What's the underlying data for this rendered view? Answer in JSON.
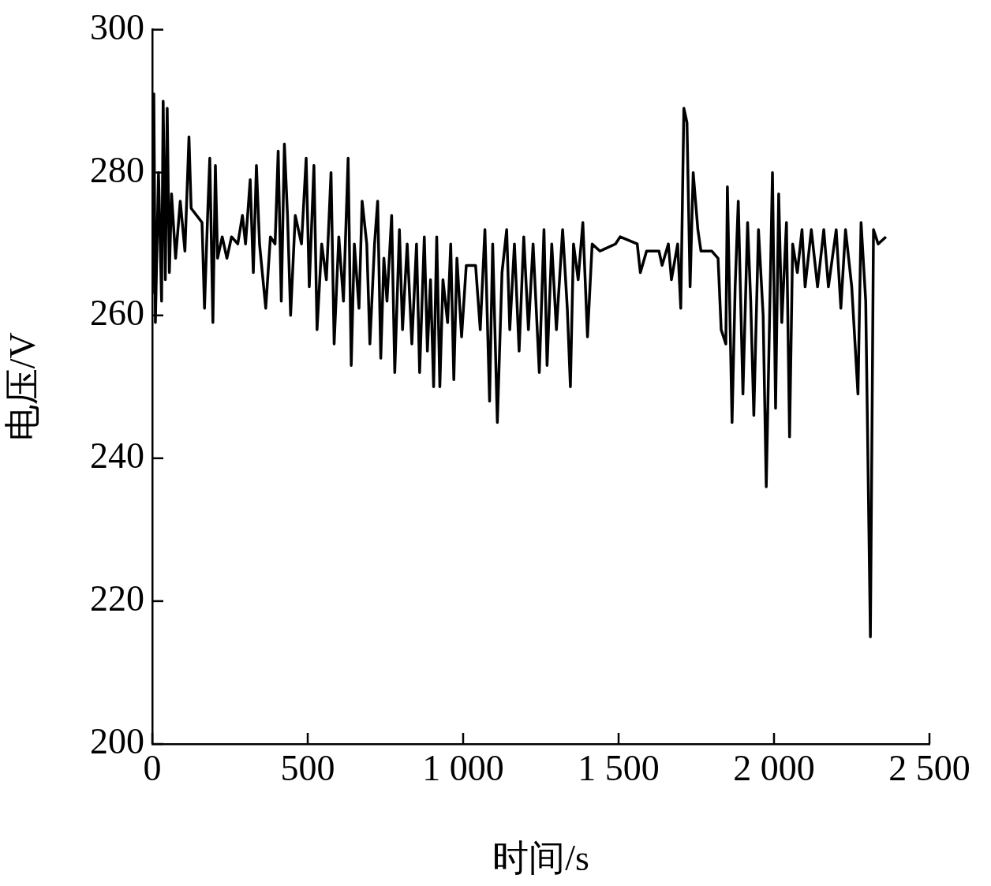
{
  "chart_data": {
    "type": "line",
    "xlabel": "时间/s",
    "ylabel": "电压/V",
    "xlim": [
      0,
      2500
    ],
    "xticks": [
      0,
      500,
      {
        "value": 1000,
        "label": "1 000"
      },
      {
        "value": 1500,
        "label": "1 500"
      },
      {
        "value": 2000,
        "label": "2 000"
      },
      {
        "value": 2500,
        "label": "2 500"
      }
    ],
    "ylim": [
      200,
      300
    ],
    "yticks": [
      200,
      220,
      240,
      260,
      280,
      300
    ],
    "grid": false,
    "legend": false,
    "marker": "none",
    "line_style": "solid",
    "series": [
      {
        "color": "#000000",
        "x": [
          0,
          5,
          10,
          20,
          30,
          35,
          42,
          48,
          55,
          62,
          75,
          90,
          105,
          118,
          125,
          160,
          168,
          178,
          185,
          195,
          203,
          210,
          225,
          240,
          255,
          275,
          290,
          300,
          315,
          325,
          335,
          345,
          365,
          380,
          395,
          405,
          415,
          425,
          435,
          445,
          460,
          480,
          495,
          505,
          520,
          530,
          545,
          560,
          575,
          585,
          600,
          615,
          630,
          640,
          650,
          665,
          675,
          690,
          700,
          715,
          725,
          735,
          745,
          755,
          770,
          780,
          795,
          805,
          820,
          835,
          850,
          860,
          875,
          885,
          895,
          905,
          915,
          925,
          935,
          950,
          960,
          970,
          980,
          995,
          1010,
          1040,
          1055,
          1070,
          1085,
          1095,
          1110,
          1125,
          1140,
          1150,
          1165,
          1180,
          1195,
          1210,
          1225,
          1245,
          1260,
          1270,
          1285,
          1300,
          1320,
          1335,
          1345,
          1355,
          1370,
          1385,
          1400,
          1415,
          1440,
          1490,
          1505,
          1560,
          1570,
          1590,
          1630,
          1640,
          1660,
          1670,
          1690,
          1700,
          1710,
          1720,
          1730,
          1740,
          1755,
          1765,
          1800,
          1820,
          1830,
          1845,
          1850,
          1865,
          1875,
          1885,
          1900,
          1915,
          1925,
          1935,
          1950,
          1965,
          1975,
          1985,
          1995,
          2005,
          2015,
          2025,
          2040,
          2050,
          2060,
          2075,
          2090,
          2100,
          2120,
          2140,
          2160,
          2175,
          2200,
          2215,
          2230,
          2250,
          2270,
          2280,
          2295,
          2310,
          2320,
          2335,
          2360
        ],
        "values": [
          263,
          291,
          259,
          280,
          262,
          290,
          265,
          289,
          266,
          277,
          268,
          276,
          269,
          285,
          275,
          273,
          261,
          274,
          282,
          259,
          281,
          268,
          271,
          268,
          271,
          270,
          274,
          270,
          279,
          266,
          281,
          270,
          261,
          271,
          270,
          283,
          262,
          284,
          274,
          260,
          274,
          270,
          282,
          264,
          281,
          258,
          270,
          265,
          280,
          256,
          271,
          262,
          282,
          253,
          270,
          261,
          276,
          270,
          256,
          270,
          276,
          254,
          268,
          262,
          274,
          252,
          272,
          258,
          270,
          256,
          270,
          252,
          271,
          255,
          265,
          250,
          271,
          250,
          265,
          259,
          270,
          251,
          268,
          257,
          267,
          267,
          258,
          272,
          248,
          270,
          245,
          266,
          272,
          258,
          270,
          255,
          271,
          258,
          270,
          252,
          272,
          253,
          270,
          258,
          272,
          261,
          250,
          270,
          265,
          273,
          257,
          270,
          269,
          270,
          271,
          270,
          266,
          269,
          269,
          267,
          270,
          265,
          270,
          261,
          289,
          287,
          264,
          280,
          272,
          269,
          269,
          268,
          258,
          256,
          278,
          245,
          264,
          276,
          249,
          273,
          262,
          246,
          272,
          260,
          236,
          258,
          280,
          247,
          277,
          259,
          273,
          243,
          270,
          266,
          272,
          264,
          272,
          264,
          272,
          264,
          272,
          261,
          272,
          264,
          249,
          273,
          262,
          215,
          272,
          270,
          271
        ]
      }
    ]
  }
}
